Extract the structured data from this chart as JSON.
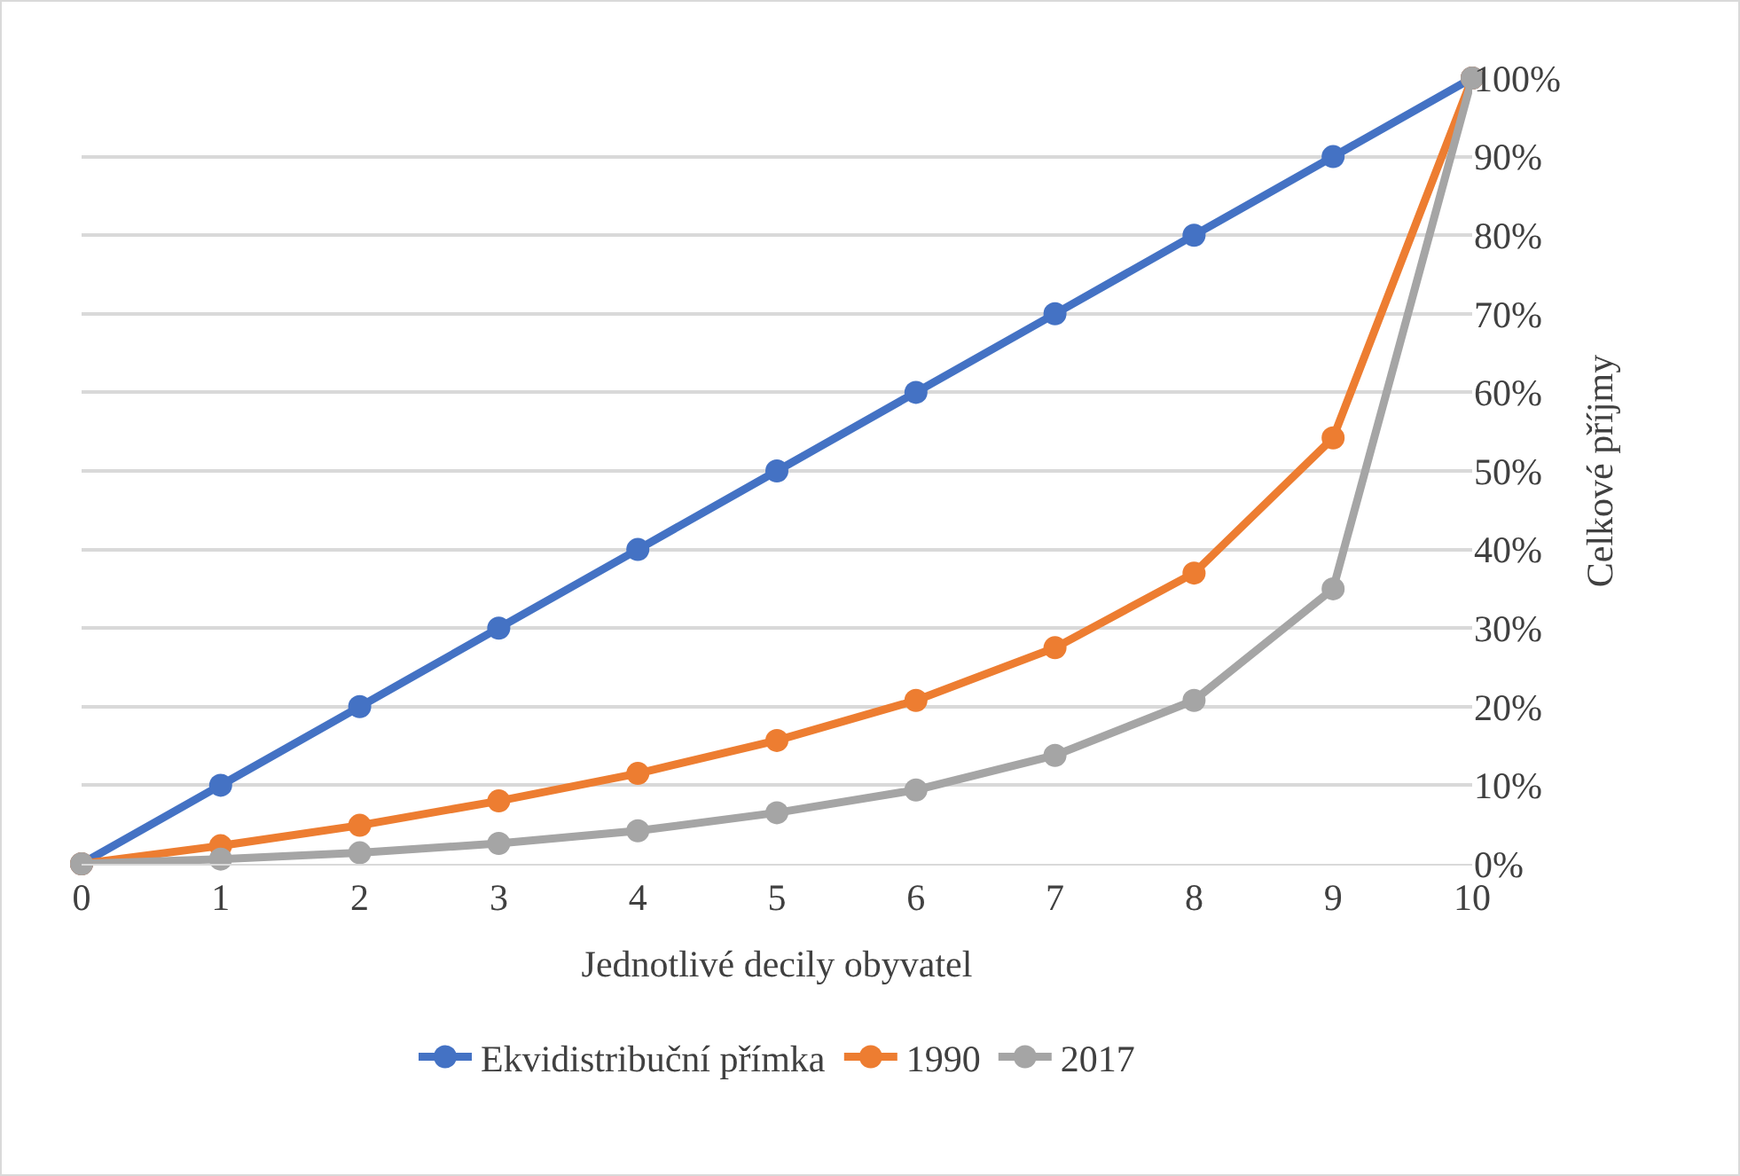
{
  "chart_data": {
    "type": "line",
    "xlabel": "Jednotlivé decily obyvatel",
    "ylabel": "Celkové příjmy",
    "x": [
      0,
      1,
      2,
      3,
      4,
      5,
      6,
      7,
      8,
      9,
      10
    ],
    "series": [
      {
        "name": "Ekvidistribuční přímka",
        "color": "#4472c4",
        "values": [
          0,
          10,
          20,
          30,
          40,
          50,
          60,
          70,
          80,
          90,
          100
        ]
      },
      {
        "name": "1990",
        "color": "#ed7d31",
        "values": [
          0,
          2.3,
          4.9,
          8,
          11.5,
          15.7,
          20.8,
          27.5,
          37,
          54.2,
          100
        ]
      },
      {
        "name": "2017",
        "color": "#a5a5a5",
        "values": [
          0,
          0.6,
          1.4,
          2.6,
          4.2,
          6.5,
          9.4,
          13.8,
          20.8,
          35,
          100
        ]
      }
    ],
    "xlim": [
      0,
      10
    ],
    "xticks": [
      0,
      1,
      2,
      3,
      4,
      5,
      6,
      7,
      8,
      9,
      10
    ],
    "ylim": [
      0,
      100
    ],
    "yticks": [
      {
        "value": 0,
        "label": "0%"
      },
      {
        "value": 10,
        "label": "10%"
      },
      {
        "value": 20,
        "label": "20%"
      },
      {
        "value": 30,
        "label": "30%"
      },
      {
        "value": 40,
        "label": "40%"
      },
      {
        "value": 50,
        "label": "50%"
      },
      {
        "value": 60,
        "label": "60%"
      },
      {
        "value": 70,
        "label": "70%"
      },
      {
        "value": 80,
        "label": "80%"
      },
      {
        "value": 90,
        "label": "90%"
      },
      {
        "value": 100,
        "label": "100%"
      }
    ],
    "grid": "y",
    "legend": "bottom",
    "marker": "circle",
    "line_style": "solid"
  }
}
